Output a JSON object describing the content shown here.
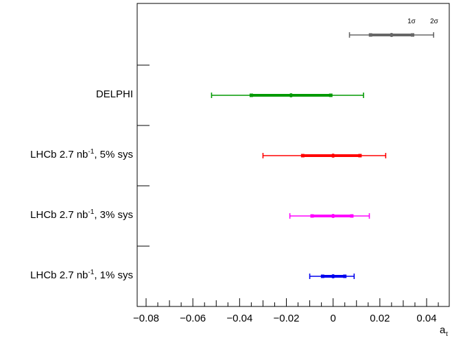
{
  "chart_data": {
    "type": "errorbar",
    "xlabel_base": "a",
    "xlabel_sub": "τ",
    "xlim": [
      -0.08,
      0.045
    ],
    "x_ticks": [
      -0.08,
      -0.06,
      -0.04,
      -0.02,
      0,
      0.02,
      0.04
    ],
    "x_tick_labels": [
      "−0.08",
      "−0.06",
      "−0.04",
      "−0.02",
      "0",
      "0.02",
      "0.04"
    ],
    "legend": {
      "inner_label": "1σ",
      "outer_label": "2σ",
      "placement": "top-right"
    },
    "rows": [
      {
        "label_pre": "",
        "label_sup": "",
        "label_post": "",
        "color": "#666666",
        "center": 0.025,
        "err_1sigma": [
          0.016,
          0.034
        ],
        "err_2sigma": [
          0.007,
          0.043
        ],
        "is_legend_key": true
      },
      {
        "label_pre": "DELPHI",
        "label_sup": "",
        "label_post": "",
        "color": "#009900",
        "center": -0.018,
        "err_1sigma": [
          -0.035,
          -0.001
        ],
        "err_2sigma": [
          -0.052,
          0.013
        ]
      },
      {
        "label_pre": "LHCb 2.7 nb",
        "label_sup": "-1",
        "label_post": ", 5% sys",
        "color": "#ff0000",
        "center": 0.0,
        "err_1sigma": [
          -0.013,
          0.0115
        ],
        "err_2sigma": [
          -0.03,
          0.0225
        ]
      },
      {
        "label_pre": "LHCb 2.7 nb",
        "label_sup": "-1",
        "label_post": ", 3% sys",
        "color": "#ff00ff",
        "center": 0.0,
        "err_1sigma": [
          -0.009,
          0.008
        ],
        "err_2sigma": [
          -0.0185,
          0.0155
        ]
      },
      {
        "label_pre": "LHCb 2.7 nb",
        "label_sup": "-1",
        "label_post": ", 1% sys",
        "color": "#0000ee",
        "center": 0.0,
        "err_1sigma": [
          -0.0045,
          0.005
        ],
        "err_2sigma": [
          -0.01,
          0.009
        ]
      }
    ]
  }
}
